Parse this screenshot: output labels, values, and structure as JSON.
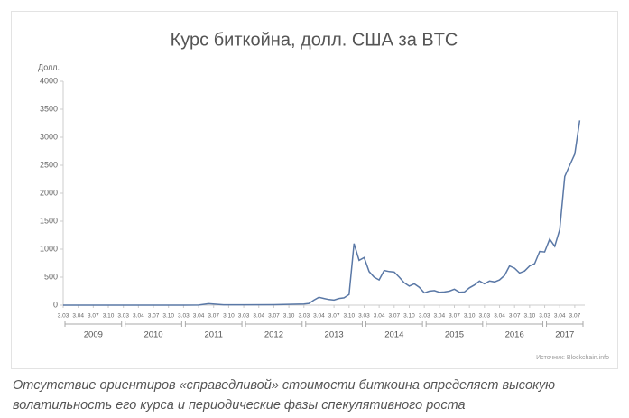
{
  "chart_data": {
    "type": "line",
    "title": "Курс биткойна, долл. США за BTC",
    "y_label": "Долл.",
    "source": "Источник: Blockchain.info",
    "ylim": [
      0,
      4000
    ],
    "yticks": [
      0,
      500,
      1000,
      1500,
      2000,
      2500,
      3000,
      3500,
      4000
    ],
    "xlim": [
      "2009-01",
      "2017-09"
    ],
    "xticks": [
      {
        "value": "2009-01",
        "label": "3.03"
      },
      {
        "value": "2009-04",
        "label": "3.04"
      },
      {
        "value": "2009-07",
        "label": "3.07"
      },
      {
        "value": "2009-10",
        "label": "3.10"
      },
      {
        "value": "2010-01",
        "label": "3.03"
      },
      {
        "value": "2010-04",
        "label": "3.04"
      },
      {
        "value": "2010-07",
        "label": "3.07"
      },
      {
        "value": "2010-10",
        "label": "3.10"
      },
      {
        "value": "2011-01",
        "label": "3.03"
      },
      {
        "value": "2011-04",
        "label": "3.04"
      },
      {
        "value": "2011-07",
        "label": "3.07"
      },
      {
        "value": "2011-10",
        "label": "3.10"
      },
      {
        "value": "2012-01",
        "label": "3.03"
      },
      {
        "value": "2012-04",
        "label": "3.04"
      },
      {
        "value": "2012-07",
        "label": "3.07"
      },
      {
        "value": "2012-10",
        "label": "3.10"
      },
      {
        "value": "2013-01",
        "label": "3.03"
      },
      {
        "value": "2013-04",
        "label": "3.04"
      },
      {
        "value": "2013-07",
        "label": "3.07"
      },
      {
        "value": "2013-10",
        "label": "3.10"
      },
      {
        "value": "2014-01",
        "label": "3.03"
      },
      {
        "value": "2014-04",
        "label": "3.04"
      },
      {
        "value": "2014-07",
        "label": "3.07"
      },
      {
        "value": "2014-10",
        "label": "3.10"
      },
      {
        "value": "2015-01",
        "label": "3.03"
      },
      {
        "value": "2015-04",
        "label": "3.04"
      },
      {
        "value": "2015-07",
        "label": "3.07"
      },
      {
        "value": "2015-10",
        "label": "3.10"
      },
      {
        "value": "2016-01",
        "label": "3.03"
      },
      {
        "value": "2016-04",
        "label": "3.04"
      },
      {
        "value": "2016-07",
        "label": "3.07"
      },
      {
        "value": "2016-10",
        "label": "3.10"
      },
      {
        "value": "2017-01",
        "label": "3.03"
      },
      {
        "value": "2017-04",
        "label": "3.04"
      },
      {
        "value": "2017-07",
        "label": "3.07"
      }
    ],
    "years": [
      "2009",
      "2010",
      "2011",
      "2012",
      "2013",
      "2014",
      "2015",
      "2016",
      "2017"
    ],
    "series": [
      {
        "name": "BTC",
        "color": "#5a78a6",
        "x": [
          "2009-01",
          "2009-07",
          "2010-01",
          "2010-07",
          "2011-01",
          "2011-04",
          "2011-06",
          "2011-09",
          "2012-01",
          "2012-07",
          "2013-01",
          "2013-02",
          "2013-03",
          "2013-04",
          "2013-05",
          "2013-06",
          "2013-07",
          "2013-08",
          "2013-09",
          "2013-10",
          "2013-11",
          "2013-12",
          "2014-01",
          "2014-02",
          "2014-03",
          "2014-04",
          "2014-05",
          "2014-06",
          "2014-07",
          "2014-08",
          "2014-09",
          "2014-10",
          "2014-11",
          "2014-12",
          "2015-01",
          "2015-02",
          "2015-03",
          "2015-04",
          "2015-05",
          "2015-06",
          "2015-07",
          "2015-08",
          "2015-09",
          "2015-10",
          "2015-11",
          "2015-12",
          "2016-01",
          "2016-02",
          "2016-03",
          "2016-04",
          "2016-05",
          "2016-06",
          "2016-07",
          "2016-08",
          "2016-09",
          "2016-10",
          "2016-11",
          "2016-12",
          "2017-01",
          "2017-02",
          "2017-03",
          "2017-04",
          "2017-05",
          "2017-06",
          "2017-07",
          "2017-08"
        ],
        "values": [
          0,
          0,
          0,
          0,
          0,
          1,
          25,
          6,
          6,
          8,
          20,
          30,
          90,
          140,
          120,
          100,
          90,
          120,
          130,
          190,
          1100,
          800,
          850,
          600,
          500,
          450,
          620,
          600,
          590,
          500,
          400,
          340,
          380,
          320,
          220,
          250,
          260,
          230,
          235,
          250,
          285,
          230,
          235,
          310,
          360,
          430,
          380,
          430,
          415,
          450,
          530,
          700,
          660,
          575,
          610,
          700,
          740,
          960,
          950,
          1180,
          1050,
          1350,
          2300,
          2500,
          2700,
          3300
        ]
      }
    ]
  },
  "caption": "Отсутствие ориентиров «справедливой» стоимости биткоина определяет высокую волатильность его курса и периодические фазы спекулятивного роста"
}
